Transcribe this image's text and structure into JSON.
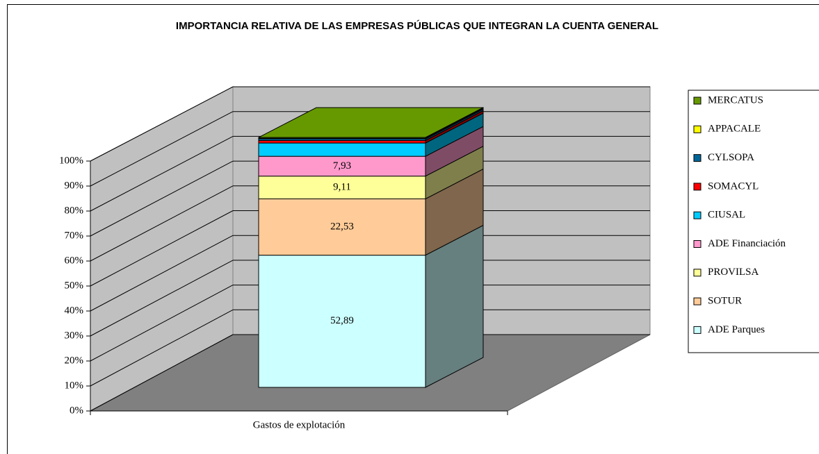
{
  "chart_data": {
    "type": "stacked_bar_3d",
    "title": "IMPORTANCIA RELATIVA DE LAS EMPRESAS PÚBLICAS QUE INTEGRAN LA CUENTA GENERAL",
    "categories": [
      "Gastos de explotación"
    ],
    "series": [
      {
        "name": "ADE Parques",
        "color": "#ccffff",
        "values": [
          52.89
        ],
        "value_labels": [
          "52,89"
        ]
      },
      {
        "name": "SOTUR",
        "color": "#ffcc99",
        "values": [
          22.53
        ],
        "value_labels": [
          "22,53"
        ]
      },
      {
        "name": "PROVILSA",
        "color": "#ffff99",
        "values": [
          9.11
        ],
        "value_labels": [
          "9,11"
        ]
      },
      {
        "name": "ADE Financiación",
        "color": "#ff99cc",
        "values": [
          7.93
        ],
        "value_labels": [
          "7,93"
        ]
      },
      {
        "name": "CIUSAL",
        "color": "#00ccff",
        "values": [
          5.3
        ]
      },
      {
        "name": "SOMACYL",
        "color": "#ff0000",
        "values": [
          1.0
        ]
      },
      {
        "name": "CYLSOPA",
        "color": "#006699",
        "values": [
          0.7
        ]
      },
      {
        "name": "APPACALE",
        "color": "#ffff00",
        "values": [
          0.2
        ]
      },
      {
        "name": "MERCATUS",
        "color": "#669900",
        "values": [
          0.34
        ]
      }
    ],
    "ylim": [
      0,
      100
    ],
    "yticks": [
      {
        "value": 0,
        "label": "0%"
      },
      {
        "value": 10,
        "label": "10%"
      },
      {
        "value": 20,
        "label": "20%"
      },
      {
        "value": 30,
        "label": "30%"
      },
      {
        "value": 40,
        "label": "40%"
      },
      {
        "value": 50,
        "label": "50%"
      },
      {
        "value": 60,
        "label": "60%"
      },
      {
        "value": 70,
        "label": "70%"
      },
      {
        "value": 80,
        "label": "80%"
      },
      {
        "value": 90,
        "label": "90%"
      },
      {
        "value": 100,
        "label": "100%"
      }
    ],
    "grid": true,
    "legend": "right"
  }
}
